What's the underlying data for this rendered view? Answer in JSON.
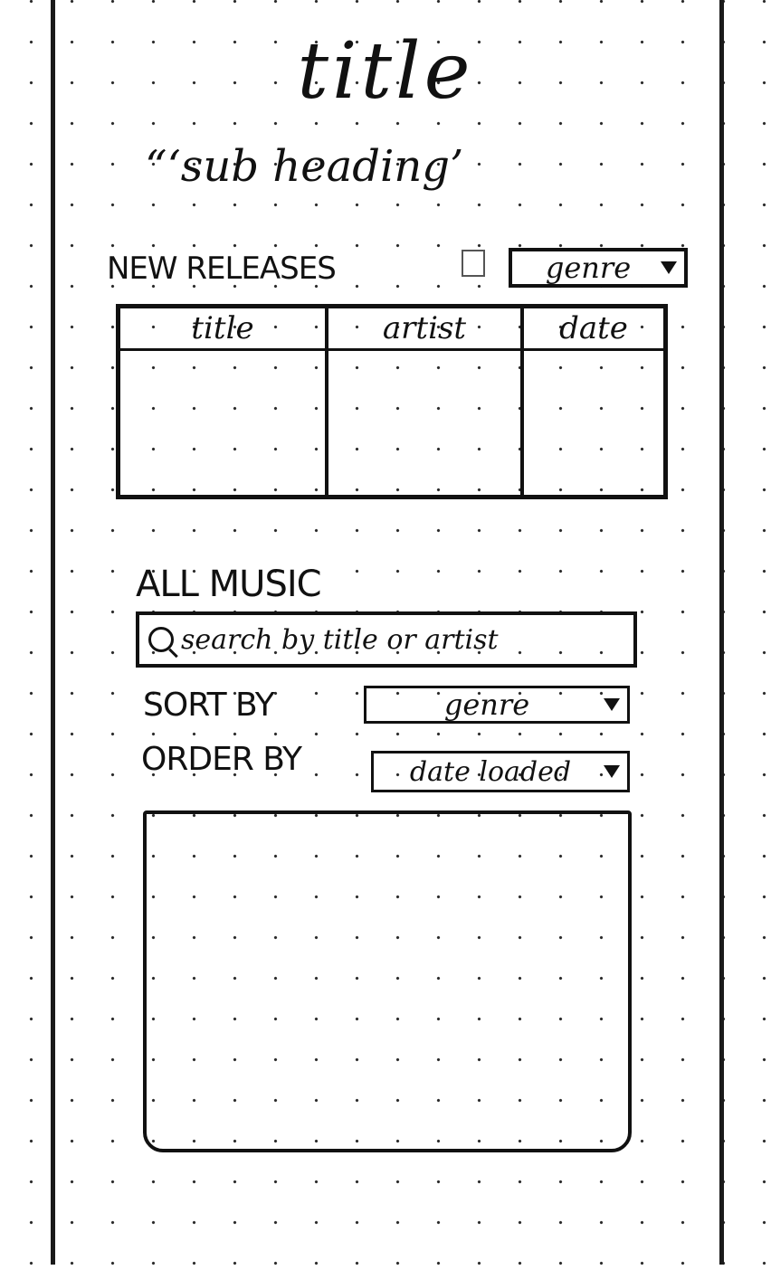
{
  "header": {
    "title": "title",
    "subheading": "“‘sub heading’"
  },
  "new_releases": {
    "label": "NEW RELEASES",
    "genre_dropdown": "genre",
    "table": {
      "columns": [
        "title",
        "artist",
        "date"
      ],
      "rows": []
    }
  },
  "all_music": {
    "label": "ALL MUSIC",
    "search": {
      "placeholder": "search by title or artist",
      "icon": "search-icon"
    },
    "sort": {
      "label": "SORT BY",
      "value": "genre"
    },
    "order": {
      "label": "ORDER BY",
      "value": "date loaded"
    },
    "results": []
  }
}
